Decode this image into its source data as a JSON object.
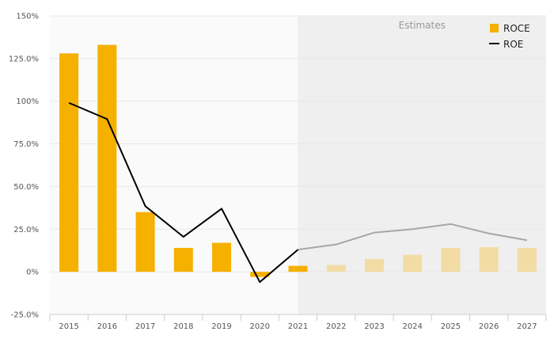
{
  "chart_data": {
    "type": "bar",
    "categories": [
      "2015",
      "2016",
      "2017",
      "2018",
      "2019",
      "2020",
      "2021",
      "2022",
      "2023",
      "2024",
      "2025",
      "2026",
      "2027"
    ],
    "series": [
      {
        "name": "ROCE",
        "kind": "bar",
        "values": [
          128,
          133,
          35,
          14,
          17,
          -3,
          3.5,
          4,
          7.5,
          10,
          14,
          14.5,
          14
        ]
      },
      {
        "name": "ROE",
        "kind": "line",
        "values": [
          99,
          89.5,
          38.5,
          20.5,
          37,
          -6,
          13,
          16,
          23,
          25,
          28,
          22.5,
          18.5
        ]
      }
    ],
    "estimates_from_index": 7,
    "estimates_label": "Estimates",
    "ylim": [
      -25,
      150
    ],
    "yticks": [
      -25,
      0,
      25,
      50,
      75,
      100,
      125,
      150
    ],
    "ytick_labels": [
      "-25.0%",
      "0%",
      "25.0%",
      "50.0%",
      "75.0%",
      "100%",
      "125.0%",
      "150%"
    ],
    "legend_position": "top-right",
    "grid": true,
    "colors": {
      "roce_actual": "#f5b000",
      "roce_estimate": "#f3dca4",
      "roe_actual": "#000000",
      "roe_estimate": "#a6a6a6",
      "estimate_bg": "#efefef",
      "plot_bg": "#fafafa",
      "grid": "#e8e8e8"
    }
  }
}
